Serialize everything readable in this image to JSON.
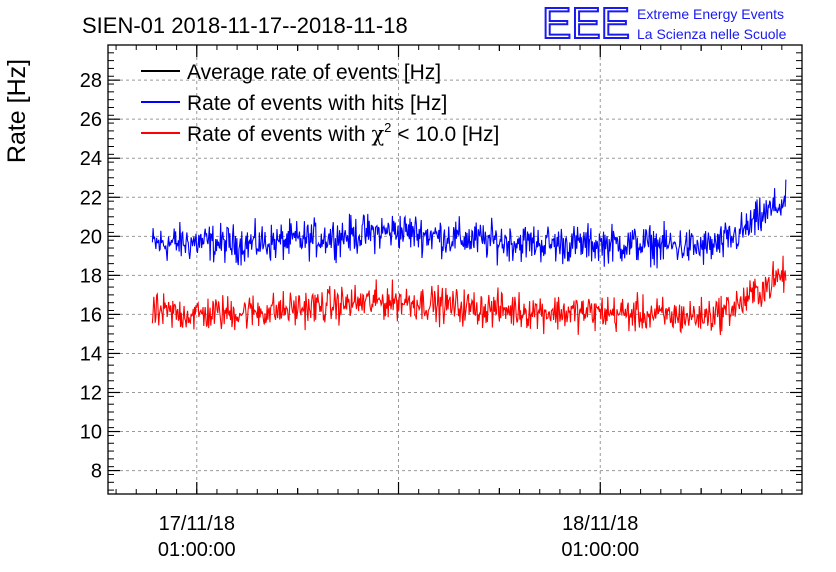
{
  "chart_data": {
    "type": "line",
    "title": "SIEN-01 2018-11-17--2018-11-18",
    "xlabel": "",
    "ylabel": "Rate [Hz]",
    "ylim": [
      6.8,
      29.8
    ],
    "yticks": [
      8,
      10,
      12,
      14,
      16,
      18,
      20,
      22,
      24,
      26,
      28
    ],
    "xlim": [
      -0.22,
      1.5
    ],
    "x_unit": "days since 17/11/18 01:00:00",
    "xticks": [
      {
        "x": 0,
        "date": "17/11/18",
        "time": "01:00:00"
      },
      {
        "x": 1,
        "date": "18/11/18",
        "time": "01:00:00"
      }
    ],
    "grid": true,
    "legend_position": "top-left",
    "series": [
      {
        "name": "Average rate of events [Hz]",
        "color": "#000000",
        "x": [],
        "values": []
      },
      {
        "name": "Rate of events with hits [Hz]",
        "color": "#0000ff",
        "x": [
          -0.11,
          0.0,
          0.1,
          0.2,
          0.3,
          0.4,
          0.5,
          0.6,
          0.7,
          0.8,
          0.9,
          1.0,
          1.1,
          1.2,
          1.25,
          1.3,
          1.35,
          1.4,
          1.45,
          1.46
        ],
        "values": [
          19.6,
          19.7,
          19.6,
          19.7,
          19.9,
          20.1,
          20.3,
          20.0,
          19.8,
          19.7,
          19.6,
          19.6,
          19.6,
          19.5,
          19.4,
          19.6,
          20.2,
          21.0,
          21.7,
          21.7
        ],
        "noise_amplitude": 0.9
      },
      {
        "name": "Rate of events with χ² < 10.0 [Hz]",
        "color": "#ff0000",
        "x": [
          -0.11,
          0.0,
          0.1,
          0.2,
          0.3,
          0.4,
          0.5,
          0.6,
          0.7,
          0.8,
          0.9,
          1.0,
          1.1,
          1.2,
          1.25,
          1.3,
          1.35,
          1.4,
          1.45,
          1.46
        ],
        "values": [
          16.1,
          16.0,
          16.1,
          16.2,
          16.4,
          16.6,
          16.7,
          16.5,
          16.3,
          16.2,
          16.1,
          16.1,
          16.0,
          15.9,
          15.9,
          16.1,
          16.6,
          17.3,
          18.0,
          18.0
        ],
        "noise_amplitude": 0.85
      }
    ]
  },
  "brand": {
    "logo": "EEE",
    "line1": "Extreme Energy Events",
    "line2": "La Scienza nelle Scuole",
    "logo_color": "#1a1aee",
    "text_color": "#1a1aee"
  },
  "legend": {
    "item1_label": "Average rate of events [Hz]",
    "item2_label": "Rate of events with hits [Hz]",
    "item3_prefix": "Rate of events with ",
    "item3_symbol": "χ",
    "item3_sup": "2",
    "item3_suffix": " < 10.0 [Hz]"
  }
}
